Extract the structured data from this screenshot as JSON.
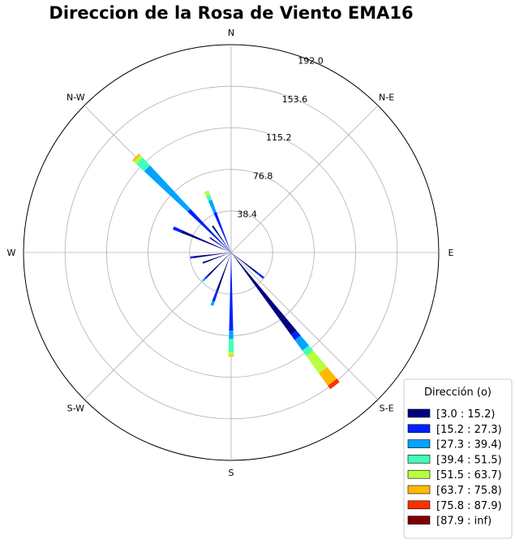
{
  "chart_data": {
    "type": "windrose",
    "title": "Direccion de la Rosa de Viento EMA16",
    "directions": [
      "N",
      "N-E",
      "E",
      "S-E",
      "S",
      "S-W",
      "W",
      "N-W"
    ],
    "radial_ticks": [
      "38.4",
      "76.8",
      "115.2",
      "153.6",
      "192.0"
    ],
    "radial_max": 192.0,
    "grid": true,
    "legend": {
      "title": "Dirección (o)",
      "placement": "bottom-right",
      "bins": [
        {
          "label": "[3.0 : 15.2)",
          "color": "#00007f"
        },
        {
          "label": "[15.2 : 27.3)",
          "color": "#0020ff"
        },
        {
          "label": "[27.3 : 39.4)",
          "color": "#00a4ff"
        },
        {
          "label": "[39.4 : 51.5)",
          "color": "#40ffb7"
        },
        {
          "label": "[51.5 : 63.7)",
          "color": "#b7ff40"
        },
        {
          "label": "[63.7 : 75.8)",
          "color": "#ffb900"
        },
        {
          "label": "[75.8 : 87.9)",
          "color": "#ff3000"
        },
        {
          "label": "[87.9 : inf)",
          "color": "#7f0000"
        }
      ]
    },
    "petals": [
      {
        "direction_deg": 142,
        "width_deg": 4,
        "stack": [
          94,
          6,
          12,
          6,
          20,
          14,
          4
        ]
      },
      {
        "direction_deg": 180,
        "width_deg": 3,
        "stack": [
          0,
          72,
          8,
          12,
          3,
          1
        ]
      },
      {
        "direction_deg": 315,
        "width_deg": 4,
        "stack": [
          0,
          55,
          55,
          10,
          3,
          2
        ]
      },
      {
        "direction_deg": 338,
        "width_deg": 4,
        "stack": [
          0,
          40,
          12,
          5,
          4
        ]
      },
      {
        "direction_deg": 128,
        "width_deg": 3,
        "stack": [
          30,
          8
        ]
      },
      {
        "direction_deg": 293,
        "width_deg": 3,
        "stack": [
          50,
          8
        ]
      },
      {
        "direction_deg": 263,
        "width_deg": 3,
        "stack": [
          35,
          3
        ]
      },
      {
        "direction_deg": 250,
        "width_deg": 3,
        "stack": [
          28
        ]
      },
      {
        "direction_deg": 225,
        "width_deg": 3,
        "stack": [
          30,
          4,
          3
        ]
      },
      {
        "direction_deg": 200,
        "width_deg": 3,
        "stack": [
          38,
          10,
          4
        ]
      },
      {
        "direction_deg": 305,
        "width_deg": 3,
        "stack": [
          24
        ]
      },
      {
        "direction_deg": 325,
        "width_deg": 3,
        "stack": [
          30
        ]
      }
    ]
  }
}
